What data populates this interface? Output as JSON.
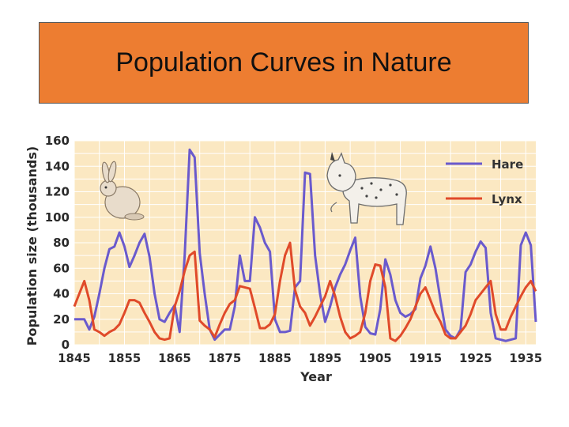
{
  "slide": {
    "title": "Population Curves in Nature"
  },
  "colors": {
    "title_bg": "#ED7D31",
    "plot_bg": "#FBE8C2",
    "grid": "#ffffff",
    "hare": "#6A5ACD",
    "lynx": "#E04A2A"
  },
  "icons": [
    "hare-illustration-icon",
    "lynx-illustration-icon"
  ],
  "chart_data": {
    "type": "line",
    "title": "",
    "xlabel": "Year",
    "ylabel": "Population size (thousands)",
    "xlim": [
      1845,
      1937
    ],
    "ylim": [
      0,
      160
    ],
    "x_ticks": [
      1845,
      1855,
      1865,
      1875,
      1885,
      1895,
      1905,
      1915,
      1925,
      1935
    ],
    "y_ticks": [
      0,
      20,
      40,
      60,
      80,
      100,
      120,
      140,
      160
    ],
    "grid": true,
    "legend_position": "top-right",
    "series": [
      {
        "name": "Hare",
        "points": [
          [
            1845,
            20
          ],
          [
            1846,
            20
          ],
          [
            1847,
            20
          ],
          [
            1848,
            12
          ],
          [
            1849,
            22
          ],
          [
            1850,
            40
          ],
          [
            1851,
            60
          ],
          [
            1852,
            75
          ],
          [
            1853,
            77
          ],
          [
            1854,
            88
          ],
          [
            1855,
            77
          ],
          [
            1856,
            61
          ],
          [
            1857,
            70
          ],
          [
            1858,
            80
          ],
          [
            1859,
            87
          ],
          [
            1860,
            69
          ],
          [
            1861,
            40
          ],
          [
            1862,
            20
          ],
          [
            1863,
            18
          ],
          [
            1864,
            25
          ],
          [
            1865,
            31
          ],
          [
            1866,
            10
          ],
          [
            1867,
            70
          ],
          [
            1868,
            153
          ],
          [
            1869,
            147
          ],
          [
            1870,
            72
          ],
          [
            1871,
            40
          ],
          [
            1872,
            12
          ],
          [
            1873,
            4
          ],
          [
            1874,
            8
          ],
          [
            1875,
            12
          ],
          [
            1876,
            12
          ],
          [
            1877,
            30
          ],
          [
            1878,
            70
          ],
          [
            1879,
            50
          ],
          [
            1880,
            50
          ],
          [
            1881,
            100
          ],
          [
            1882,
            92
          ],
          [
            1883,
            80
          ],
          [
            1884,
            73
          ],
          [
            1885,
            20
          ],
          [
            1886,
            10
          ],
          [
            1887,
            10
          ],
          [
            1888,
            11
          ],
          [
            1889,
            45
          ],
          [
            1890,
            50
          ],
          [
            1891,
            135
          ],
          [
            1892,
            134
          ],
          [
            1893,
            70
          ],
          [
            1894,
            40
          ],
          [
            1895,
            18
          ],
          [
            1896,
            30
          ],
          [
            1897,
            45
          ],
          [
            1898,
            55
          ],
          [
            1899,
            63
          ],
          [
            1900,
            74
          ],
          [
            1901,
            84
          ],
          [
            1902,
            38
          ],
          [
            1903,
            14
          ],
          [
            1904,
            9
          ],
          [
            1905,
            8
          ],
          [
            1906,
            28
          ],
          [
            1907,
            67
          ],
          [
            1908,
            55
          ],
          [
            1909,
            35
          ],
          [
            1910,
            25
          ],
          [
            1911,
            22
          ],
          [
            1912,
            24
          ],
          [
            1913,
            28
          ],
          [
            1914,
            52
          ],
          [
            1915,
            62
          ],
          [
            1916,
            77
          ],
          [
            1917,
            60
          ],
          [
            1918,
            35
          ],
          [
            1919,
            12
          ],
          [
            1920,
            7
          ],
          [
            1921,
            5
          ],
          [
            1922,
            12
          ],
          [
            1923,
            57
          ],
          [
            1924,
            63
          ],
          [
            1925,
            73
          ],
          [
            1926,
            81
          ],
          [
            1927,
            76
          ],
          [
            1928,
            25
          ],
          [
            1929,
            5
          ],
          [
            1930,
            4
          ],
          [
            1931,
            3
          ],
          [
            1932,
            4
          ],
          [
            1933,
            5
          ],
          [
            1934,
            78
          ],
          [
            1935,
            88
          ],
          [
            1936,
            78
          ],
          [
            1937,
            18
          ]
        ]
      },
      {
        "name": "Lynx",
        "points": [
          [
            1845,
            30
          ],
          [
            1846,
            40
          ],
          [
            1847,
            50
          ],
          [
            1848,
            35
          ],
          [
            1849,
            12
          ],
          [
            1850,
            10
          ],
          [
            1851,
            7
          ],
          [
            1852,
            10
          ],
          [
            1853,
            12
          ],
          [
            1854,
            16
          ],
          [
            1855,
            25
          ],
          [
            1856,
            35
          ],
          [
            1857,
            35
          ],
          [
            1858,
            33
          ],
          [
            1859,
            25
          ],
          [
            1860,
            18
          ],
          [
            1861,
            10
          ],
          [
            1862,
            5
          ],
          [
            1863,
            4
          ],
          [
            1864,
            5
          ],
          [
            1865,
            30
          ],
          [
            1866,
            42
          ],
          [
            1867,
            58
          ],
          [
            1868,
            70
          ],
          [
            1869,
            73
          ],
          [
            1870,
            19
          ],
          [
            1871,
            15
          ],
          [
            1872,
            12
          ],
          [
            1873,
            6
          ],
          [
            1874,
            16
          ],
          [
            1875,
            25
          ],
          [
            1876,
            32
          ],
          [
            1877,
            35
          ],
          [
            1878,
            46
          ],
          [
            1879,
            45
          ],
          [
            1880,
            44
          ],
          [
            1881,
            29
          ],
          [
            1882,
            13
          ],
          [
            1883,
            13
          ],
          [
            1884,
            16
          ],
          [
            1885,
            24
          ],
          [
            1886,
            50
          ],
          [
            1887,
            70
          ],
          [
            1888,
            80
          ],
          [
            1889,
            43
          ],
          [
            1890,
            30
          ],
          [
            1891,
            25
          ],
          [
            1892,
            15
          ],
          [
            1893,
            22
          ],
          [
            1894,
            30
          ],
          [
            1895,
            38
          ],
          [
            1896,
            50
          ],
          [
            1897,
            38
          ],
          [
            1898,
            22
          ],
          [
            1899,
            10
          ],
          [
            1900,
            5
          ],
          [
            1901,
            7
          ],
          [
            1902,
            10
          ],
          [
            1903,
            25
          ],
          [
            1904,
            50
          ],
          [
            1905,
            63
          ],
          [
            1906,
            62
          ],
          [
            1907,
            45
          ],
          [
            1908,
            5
          ],
          [
            1909,
            3
          ],
          [
            1910,
            7
          ],
          [
            1911,
            13
          ],
          [
            1912,
            20
          ],
          [
            1913,
            30
          ],
          [
            1914,
            40
          ],
          [
            1915,
            45
          ],
          [
            1916,
            35
          ],
          [
            1917,
            25
          ],
          [
            1918,
            18
          ],
          [
            1919,
            8
          ],
          [
            1920,
            5
          ],
          [
            1921,
            5
          ],
          [
            1922,
            10
          ],
          [
            1923,
            15
          ],
          [
            1924,
            24
          ],
          [
            1925,
            35
          ],
          [
            1926,
            40
          ],
          [
            1927,
            45
          ],
          [
            1928,
            50
          ],
          [
            1929,
            24
          ],
          [
            1930,
            12
          ],
          [
            1931,
            12
          ],
          [
            1932,
            22
          ],
          [
            1933,
            30
          ],
          [
            1934,
            38
          ],
          [
            1935,
            45
          ],
          [
            1936,
            50
          ],
          [
            1937,
            42
          ]
        ]
      }
    ]
  }
}
